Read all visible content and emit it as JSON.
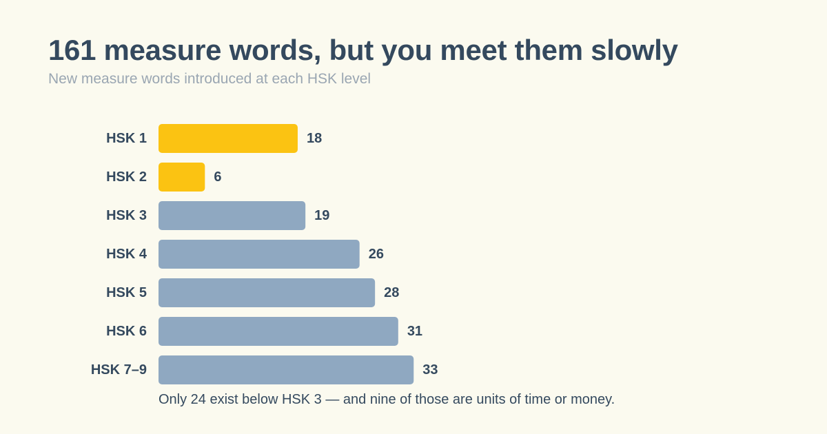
{
  "header": {
    "title": "161 measure words, but you meet them slowly",
    "subtitle": "New measure words introduced at each HSK level"
  },
  "footnote": "Only 24 exist below HSK 3 — and nine of those are units of time or money.",
  "colors": {
    "highlight": "#fbc312",
    "default": "#8fa8c1",
    "text": "#34495e",
    "subtitle": "#9aa6b2",
    "background": "#fbfaef"
  },
  "chart_data": {
    "type": "bar",
    "orientation": "horizontal",
    "categories": [
      "HSK 1",
      "HSK 2",
      "HSK 3",
      "HSK 4",
      "HSK 5",
      "HSK 6",
      "HSK 7–9"
    ],
    "values": [
      18,
      6,
      19,
      26,
      28,
      31,
      33
    ],
    "highlighted": [
      true,
      true,
      false,
      false,
      false,
      false,
      false
    ],
    "data_labels": [
      "18",
      "6",
      "19",
      "26",
      "28",
      "31",
      "33"
    ],
    "title": "161 measure words, but you meet them slowly",
    "subtitle": "New measure words introduced at each HSK level",
    "xlabel": "",
    "ylabel": "",
    "grid": false,
    "legend": "none"
  }
}
